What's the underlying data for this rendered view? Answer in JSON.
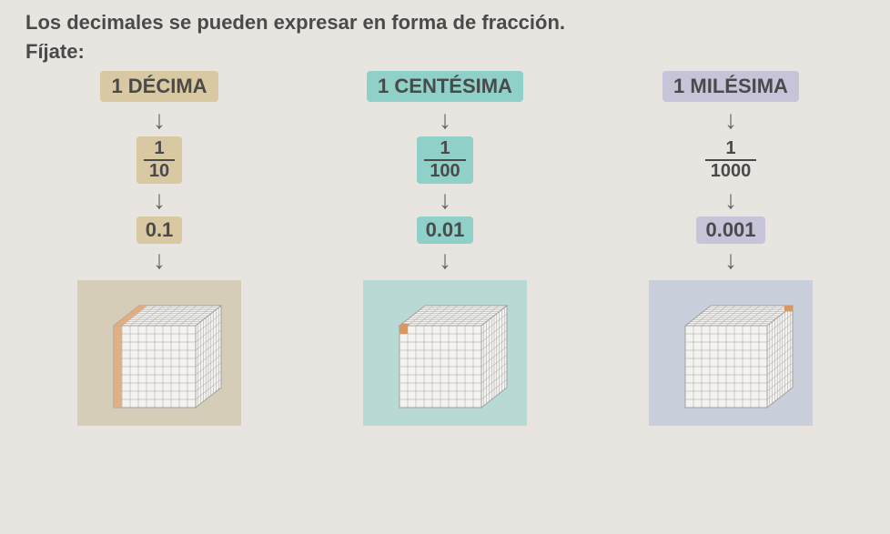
{
  "intro_line": "Los decimales se pueden expresar en forma de fracción.",
  "fijate": "Fíjate:",
  "arrow_glyph": "↓",
  "colors": {
    "tan": "#d9c9a3",
    "teal": "#8fd0c9",
    "lilac": "#c7c3d9",
    "panel_tan": "#d6cdb8",
    "panel_teal": "#b8d9d4",
    "panel_lilac": "#cad0db",
    "cube_face": "#f5f3ef",
    "cube_grid": "#a0a0a0",
    "cube_highlight_tan": "#e0a878",
    "cube_highlight_teal": "#d89860",
    "cube_highlight_lilac": "#d89860"
  },
  "columns": [
    {
      "label": "1 DÉCIMA",
      "label_class": "hl-tan",
      "frac_num": "1",
      "frac_den": "10",
      "decimal": "0.1",
      "panel_bg": "#d6cdb8",
      "highlight_mode": "slice"
    },
    {
      "label": "1 CENTÉSIMA",
      "label_class": "hl-teal",
      "frac_num": "1",
      "frac_den": "100",
      "decimal": "0.01",
      "panel_bg": "#b8d9d4",
      "highlight_mode": "column"
    },
    {
      "label": "1 MILÉSIMA",
      "label_class": "hl-lilac",
      "frac_num": "1",
      "frac_den": "1000",
      "decimal": "0.001",
      "panel_bg": "#cad0db",
      "highlight_mode": "unit"
    }
  ]
}
